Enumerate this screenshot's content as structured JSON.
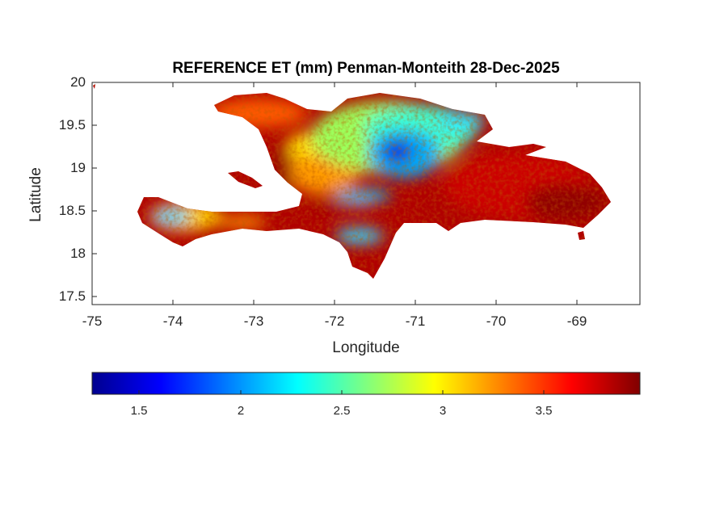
{
  "chart_data": {
    "type": "heatmap",
    "title": "REFERENCE ET (mm) Penman-Monteith 28-Dec-2025",
    "xlabel": "Longitude",
    "ylabel": "Latitude",
    "xlim": [
      -75,
      -68.22
    ],
    "ylim": [
      17.4,
      20
    ],
    "xticks": [
      "-75",
      "-74",
      "-73",
      "-72",
      "-71",
      "-70",
      "-69"
    ],
    "xtick_values": [
      -75,
      -74,
      -73,
      -72,
      -71,
      -70,
      -69
    ],
    "yticks": [
      "20",
      "19.5",
      "19",
      "18.5",
      "18",
      "17.5"
    ],
    "ytick_values": [
      20,
      19.5,
      19,
      18.5,
      18,
      17.5
    ],
    "colormap": "jet",
    "colorbar": {
      "location": "south",
      "range": [
        1.27,
        3.98
      ],
      "ticks": [
        "1.5",
        "2",
        "2.5",
        "3",
        "3.5"
      ],
      "tick_values": [
        1.5,
        2,
        2.5,
        3,
        3.5
      ]
    },
    "regions": [
      {
        "name": "eastern Dominican Republic",
        "approx_value": 3.8
      },
      {
        "name": "central Cordillera (approx -71.2, 19.2)",
        "approx_value": 1.6
      },
      {
        "name": "northern plains",
        "approx_value": 2.6
      },
      {
        "name": "western Haiti southern peninsula (approx -74.1, 18.4)",
        "approx_value": 2.3
      },
      {
        "name": "Haiti lowlands",
        "approx_value": 3.6
      }
    ]
  }
}
